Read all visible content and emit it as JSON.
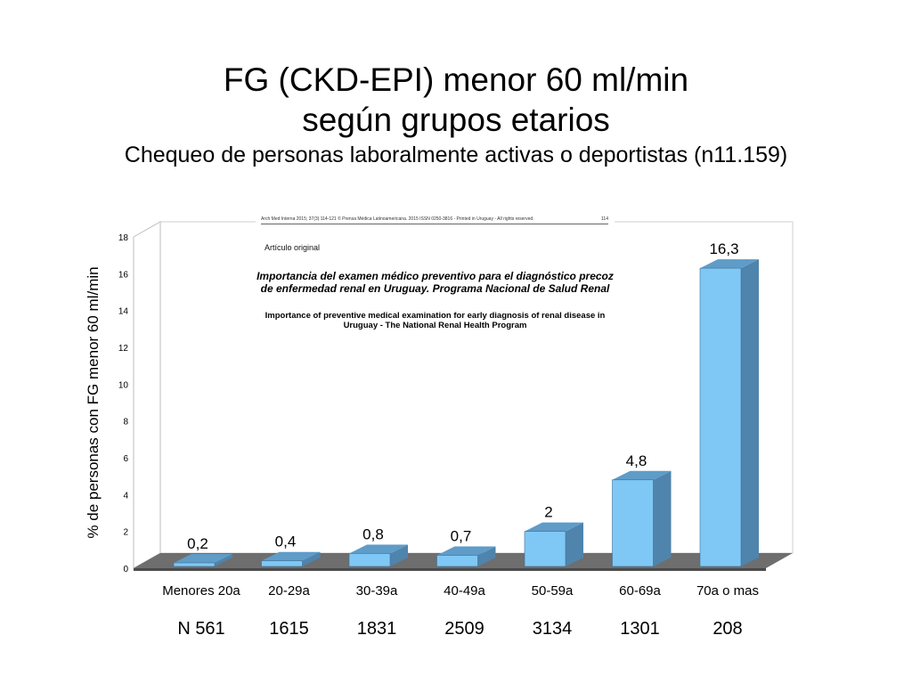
{
  "title": {
    "line1": "FG (CKD-EPI) menor 60 ml/min",
    "line2": "según grupos etarios",
    "subtitle": "Chequeo de personas laboralmente activas o deportistas (n11.159)"
  },
  "inset_paper": {
    "header": "Arch Med Interna 2015; 37(3):114-121 © Prensa Médica Latinoamericana. 2015 ISSN 0250-3816 - Printed in Uruguay - All rights reserved.",
    "page": "114",
    "article_type": "Artículo original",
    "title_es": "Importancia del examen médico preventivo para el diagnóstico precoz de enfermedad renal en Uruguay. Programa Nacional de Salud Renal",
    "title_en": "Importance of preventive medical examination for early diagnosis of renal disease in Uruguay - The National Renal Health Program"
  },
  "chart_data": {
    "type": "bar",
    "style": "3d",
    "ylabel": "% de personas con FG menor 60 ml/min",
    "ylim": [
      0,
      18
    ],
    "yticks": [
      0,
      2,
      4,
      6,
      8,
      10,
      12,
      14,
      16,
      18
    ],
    "categories": [
      "Menores 20a",
      "20-29a",
      "30-39a",
      "40-49a",
      "50-59a",
      "60-69a",
      "70a o mas"
    ],
    "values": [
      0.2,
      0.4,
      0.8,
      0.7,
      2,
      4.8,
      16.3
    ],
    "value_labels": [
      "0,2",
      "0,4",
      "0,8",
      "0,7",
      "2",
      "4,8",
      "16,3"
    ],
    "n_labels": [
      "N 561",
      "1615",
      "1831",
      "2509",
      "3134",
      "1301",
      "208"
    ],
    "colors": {
      "bar_front": "#7fc8f5",
      "bar_side": "#4f84ad",
      "bar_top": "#5f9cc8",
      "floor": "#6e6e6e"
    }
  }
}
